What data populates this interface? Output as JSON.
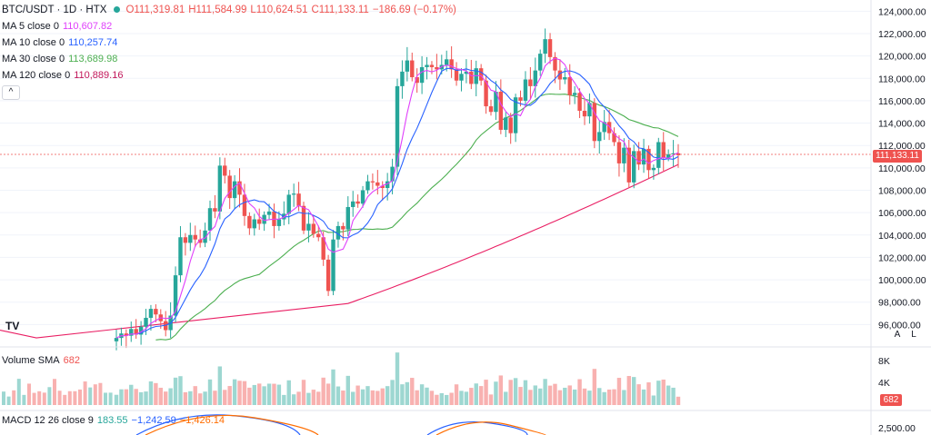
{
  "header": {
    "symbol": "BTC/USDT · 1D · HTX",
    "open": "O111,319.81",
    "high": "H111,584.99",
    "low": "L110,624.51",
    "close": "C111,133.11",
    "change": "−186.69 (−0.17%)"
  },
  "indicators": [
    {
      "label": "MA 5 close 0",
      "value": "110,607.82",
      "color": "#e040fb"
    },
    {
      "label": "MA 10 close 0",
      "value": "110,257.74",
      "color": "#2962ff"
    },
    {
      "label": "MA 30 close 0",
      "value": "113,689.98",
      "color": "#4caf50"
    },
    {
      "label": "MA 120 close 0",
      "value": "110,889.16",
      "color": "#c2185b"
    }
  ],
  "collapse_label": "^",
  "volume_label": "Volume SMA",
  "volume_value": "682",
  "volume_tag": "682",
  "macd": {
    "label": "MACD 12 26 close 9",
    "v1": "183.55",
    "v2": "−1,242.59",
    "v3": "−1,426.14"
  },
  "price_tag": "111,133.11",
  "buttons": {
    "auto": "A",
    "log": "L"
  },
  "logo": "TV",
  "colors": {
    "up": "#26a69a",
    "down": "#ef5350",
    "ma5": "#e040fb",
    "ma10": "#2962ff",
    "ma30": "#4caf50",
    "ma120": "#e91e63"
  },
  "chart_data": {
    "type": "candlestick",
    "title": "BTC/USDT · 1D · HTX",
    "y_ticks": [
      96000,
      98000,
      100000,
      102000,
      104000,
      106000,
      108000,
      110000,
      112000,
      114000,
      116000,
      118000,
      120000,
      122000,
      124000
    ],
    "y_tick_labels": [
      "96,000.00",
      "98,000.00",
      "100,000.00",
      "102,000.00",
      "104,000.00",
      "106,000.00",
      "108,000.00",
      "110,000.00",
      "112,000.00",
      "114,000.00",
      "116,000.00",
      "118,000.00",
      "120,000.00",
      "122,000.00",
      "124,000.00"
    ],
    "ylim": [
      94000,
      125000
    ],
    "volume_ticks": [
      "8K",
      "4K"
    ],
    "macd_tick": "2,500.00",
    "last_price": 111133.11,
    "closes": [
      94800,
      95200,
      95000,
      95600,
      95100,
      95800,
      96600,
      97400,
      96900,
      96300,
      95500,
      96800,
      100400,
      103800,
      103300,
      104000,
      103600,
      103300,
      104400,
      106400,
      106100,
      110200,
      109300,
      107300,
      108800,
      107600,
      105700,
      104600,
      105400,
      105000,
      105800,
      106100,
      104800,
      105400,
      105900,
      107600,
      107700,
      106600,
      104400,
      105000,
      104100,
      103800,
      101800,
      99000,
      103600,
      104800,
      104500,
      106500,
      107000,
      106800,
      108000,
      108800,
      108700,
      108400,
      108200,
      108800,
      110100,
      117300,
      118600,
      119600,
      118100,
      117600,
      119000,
      119200,
      119000,
      118800,
      119200,
      119700,
      118800,
      117800,
      118400,
      118600,
      117500,
      118900,
      117800,
      115500,
      115000,
      116800,
      113400,
      114500,
      113100,
      116300,
      116000,
      117900,
      117300,
      118700,
      120200,
      121500,
      119900,
      118700,
      117900,
      118100,
      116500,
      116700,
      115100,
      114600,
      115800,
      112400,
      113200,
      114100,
      113100,
      112300,
      110400,
      111800,
      108700,
      111500,
      110300,
      111700,
      109800,
      110000,
      112300,
      110900,
      111200,
      111300,
      111133
    ]
  }
}
